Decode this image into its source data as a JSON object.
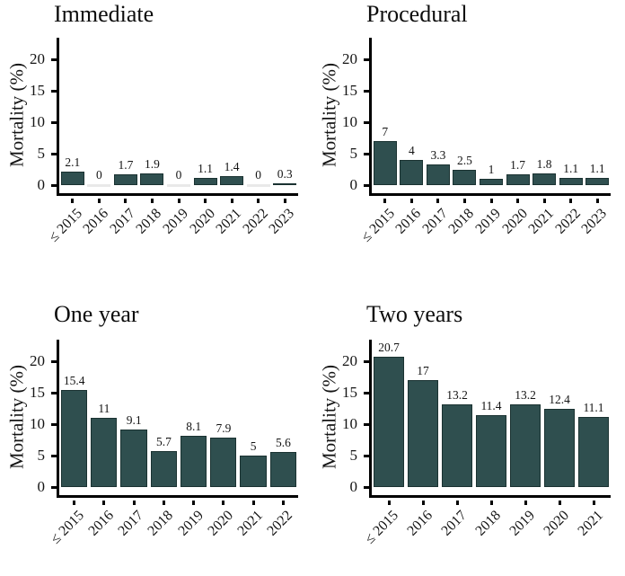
{
  "shared": {
    "ylabel": "Mortality (%)",
    "y_ticks": [
      0,
      5,
      10,
      15,
      20
    ],
    "bar_color": "#2f4f4f",
    "bar_border_color": "#1a3231",
    "zero_bar_color": "#e9e9e9",
    "axis_color": "#000000",
    "text_color": "#141414",
    "background_color": "#ffffff"
  },
  "chart_data": [
    {
      "type": "bar",
      "title": "Immediate",
      "xlabel": "",
      "ylabel": "Mortality (%)",
      "ylim": [
        0,
        20
      ],
      "grid": "off",
      "categories": [
        "≤ 2015",
        "2016",
        "2017",
        "2018",
        "2019",
        "2020",
        "2021",
        "2022",
        "2023"
      ],
      "values": [
        2.1,
        0,
        1.7,
        1.9,
        0,
        1.1,
        1.4,
        0,
        0.3
      ],
      "labels": [
        "2.1",
        "0",
        "1.7",
        "1.9",
        "0",
        "1.1",
        "1.4",
        "0",
        "0.3"
      ]
    },
    {
      "type": "bar",
      "title": "Procedural",
      "xlabel": "",
      "ylabel": "Mortality (%)",
      "ylim": [
        0,
        20
      ],
      "grid": "off",
      "categories": [
        "≤ 2015",
        "2016",
        "2017",
        "2018",
        "2019",
        "2020",
        "2021",
        "2022",
        "2023"
      ],
      "values": [
        7,
        4,
        3.3,
        2.5,
        1,
        1.7,
        1.8,
        1.1,
        1.1
      ],
      "labels": [
        "7",
        "4",
        "3.3",
        "2.5",
        "1",
        "1.7",
        "1.8",
        "1.1",
        "1.1"
      ]
    },
    {
      "type": "bar",
      "title": "One year",
      "xlabel": "",
      "ylabel": "Mortality (%)",
      "ylim": [
        0,
        20
      ],
      "grid": "off",
      "categories": [
        "≤ 2015",
        "2016",
        "2017",
        "2018",
        "2019",
        "2020",
        "2021",
        "2022"
      ],
      "values": [
        15.4,
        11,
        9.1,
        5.7,
        8.1,
        7.9,
        5,
        5.6
      ],
      "labels": [
        "15.4",
        "11",
        "9.1",
        "5.7",
        "8.1",
        "7.9",
        "5",
        "5.6"
      ]
    },
    {
      "type": "bar",
      "title": "Two years",
      "xlabel": "",
      "ylabel": "Mortality (%)",
      "ylim": [
        0,
        20
      ],
      "grid": "off",
      "categories": [
        "≤ 2015",
        "2016",
        "2017",
        "2018",
        "2019",
        "2020",
        "2021"
      ],
      "values": [
        20.7,
        17,
        13.2,
        11.4,
        13.2,
        12.4,
        11.1
      ],
      "labels": [
        "20.7",
        "17",
        "13.2",
        "11.4",
        "13.2",
        "12.4",
        "11.1"
      ]
    }
  ]
}
